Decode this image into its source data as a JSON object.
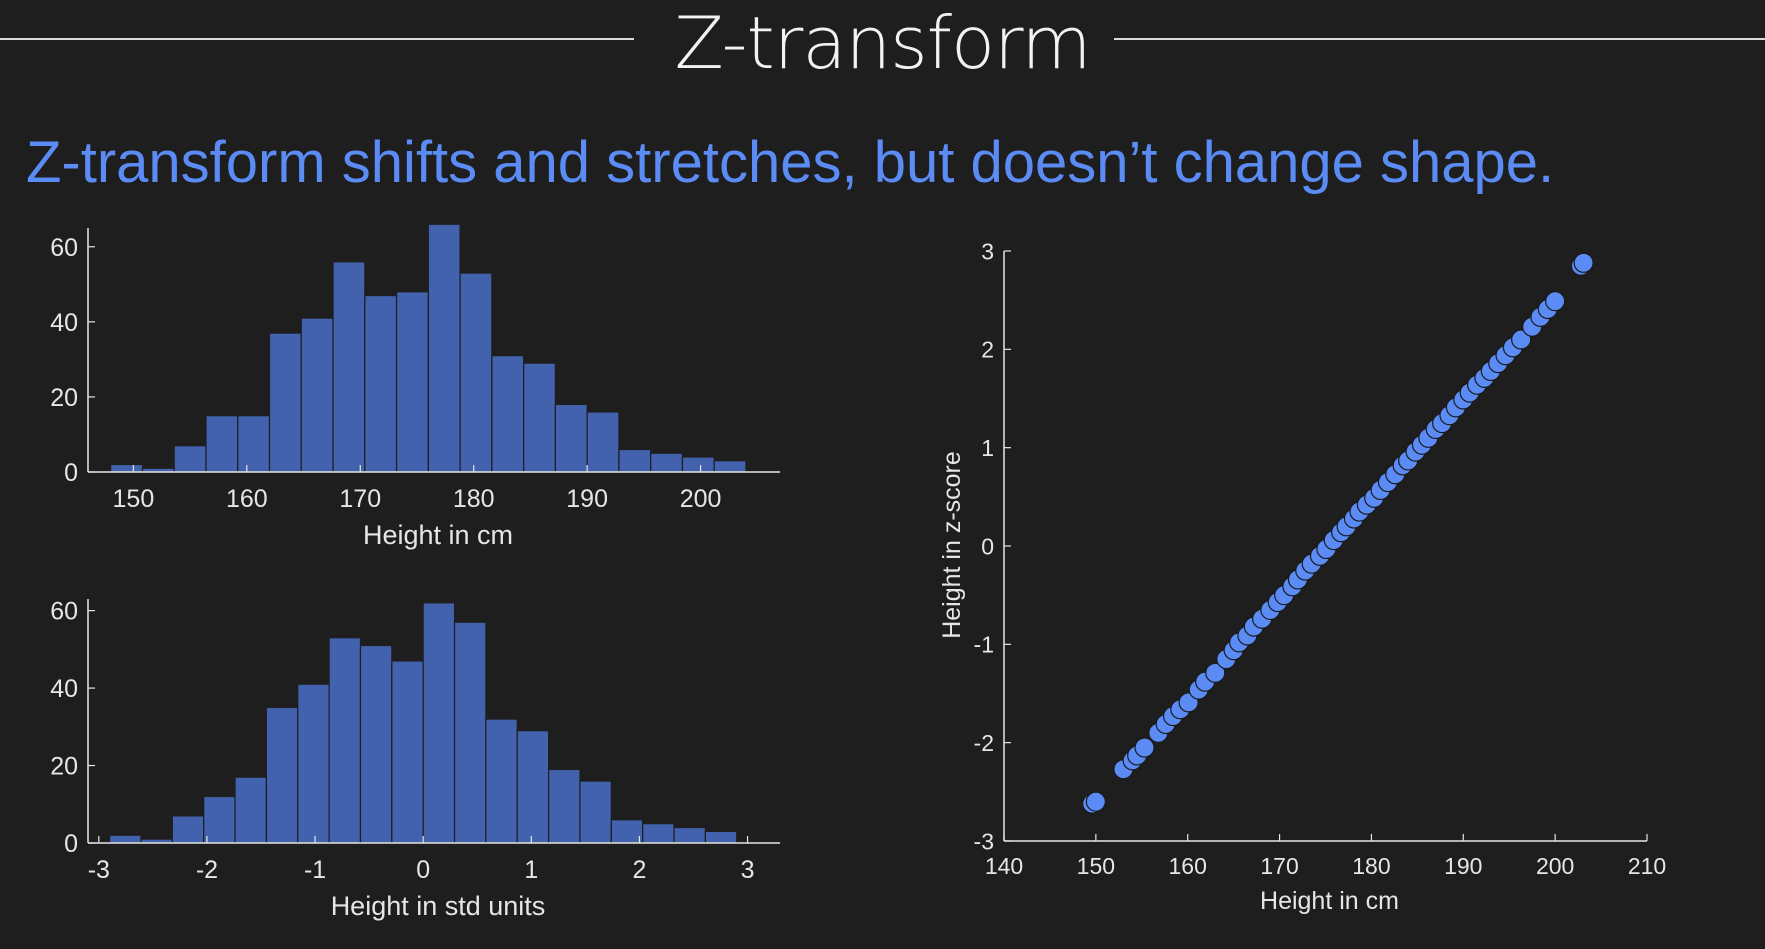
{
  "slide": {
    "title": "Z-transform",
    "headline": "Z-transform shifts and stretches, but doesn’t change shape."
  },
  "colors": {
    "background": "#1e1e1e",
    "bar_fill": "#4262ad",
    "bar_edge": "#1e1e1e",
    "point_fill": "#5b8cf5",
    "axis": "#e6e6e6",
    "headline": "#5b8cf5"
  },
  "chart_data": [
    {
      "type": "bar",
      "xlabel": "Height in cm",
      "ylabel": "",
      "xlim": [
        146,
        207
      ],
      "ylim": [
        0,
        65
      ],
      "xticks": [
        150,
        160,
        170,
        180,
        190,
        200
      ],
      "yticks": [
        0,
        20,
        40,
        60
      ],
      "bin_edges": [
        148,
        150.8,
        153.6,
        156.4,
        159.2,
        162,
        164.8,
        167.6,
        170.4,
        173.2,
        176,
        178.8,
        181.6,
        184.4,
        187.2,
        190,
        192.8,
        195.6,
        198.4,
        201.2,
        204
      ],
      "values": [
        2,
        1,
        7,
        15,
        15,
        37,
        41,
        56,
        47,
        48,
        66,
        53,
        31,
        29,
        18,
        16,
        6,
        5,
        4,
        3
      ],
      "grid": false
    },
    {
      "type": "bar",
      "xlabel": "Height in std units",
      "ylabel": "",
      "xlim": [
        -3.1,
        3.3
      ],
      "ylim": [
        0,
        63
      ],
      "xticks": [
        -3,
        -2,
        -1,
        0,
        1,
        2,
        3
      ],
      "yticks": [
        0,
        20,
        40,
        60
      ],
      "bin_edges": [
        -2.9,
        -2.61,
        -2.32,
        -2.03,
        -1.74,
        -1.45,
        -1.16,
        -0.87,
        -0.58,
        -0.29,
        0,
        0.29,
        0.58,
        0.87,
        1.16,
        1.45,
        1.74,
        2.03,
        2.32,
        2.61,
        2.9
      ],
      "values": [
        2,
        1,
        7,
        12,
        17,
        35,
        41,
        53,
        51,
        47,
        62,
        57,
        32,
        29,
        19,
        16,
        6,
        5,
        4,
        3
      ],
      "grid": false
    },
    {
      "type": "scatter",
      "xlabel": "Height in cm",
      "ylabel": "Height in z-score",
      "xlim": [
        140,
        210
      ],
      "ylim": [
        -3,
        3
      ],
      "xticks": [
        140,
        150,
        160,
        170,
        180,
        190,
        200,
        210
      ],
      "yticks": [
        -3,
        -2,
        -1,
        0,
        1,
        2,
        3
      ],
      "mean": 176.3,
      "std": 9.8,
      "x": [
        149.6,
        150,
        153,
        154,
        154.5,
        155.3,
        156.8,
        157.6,
        158.4,
        159.2,
        160.1,
        161.2,
        161.9,
        163,
        164.2,
        165,
        165.6,
        166.5,
        167.2,
        168.1,
        169,
        169.8,
        170.5,
        171.4,
        172,
        172.8,
        173.5,
        174.4,
        175.1,
        175.9,
        176.7,
        177.3,
        178.1,
        178.7,
        179.5,
        180.3,
        181,
        181.8,
        182.6,
        183.4,
        184,
        184.8,
        185.5,
        186.2,
        187,
        187.7,
        188.5,
        189.2,
        190,
        190.7,
        191.5,
        192.3,
        193,
        193.8,
        194.6,
        195.4,
        196.3,
        197.5,
        198.4,
        199.2,
        200,
        202.8,
        203.1
      ],
      "y": [
        -2.62,
        -2.6,
        -2.27,
        -2.18,
        -2.13,
        -2.05,
        -1.9,
        -1.81,
        -1.73,
        -1.66,
        -1.59,
        -1.46,
        -1.38,
        -1.29,
        -1.15,
        -1.06,
        -0.98,
        -0.91,
        -0.82,
        -0.74,
        -0.65,
        -0.57,
        -0.5,
        -0.41,
        -0.34,
        -0.25,
        -0.18,
        -0.1,
        -0.03,
        0.06,
        0.14,
        0.2,
        0.28,
        0.35,
        0.42,
        0.49,
        0.57,
        0.65,
        0.73,
        0.82,
        0.87,
        0.96,
        1.03,
        1.1,
        1.19,
        1.25,
        1.33,
        1.41,
        1.49,
        1.56,
        1.64,
        1.71,
        1.78,
        1.86,
        1.94,
        2.02,
        2.1,
        2.23,
        2.33,
        2.41,
        2.49,
        2.85,
        2.88
      ],
      "grid": false
    }
  ]
}
